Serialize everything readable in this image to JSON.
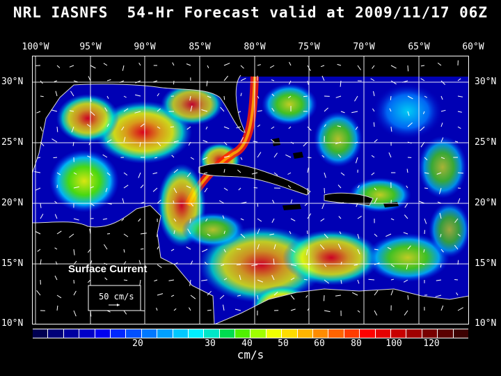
{
  "title": "NRL IASNFS  54-Hr Forecast valid at 2009/11/17 06Z",
  "longitude_labels": [
    "100°W",
    "95°W",
    "90°W",
    "85°W",
    "80°W",
    "75°W",
    "70°W",
    "65°W",
    "60°W"
  ],
  "latitude_labels": [
    "30°N",
    "25°N",
    "20°N",
    "15°N",
    "10°N"
  ],
  "map": {
    "field_label": "Surface Current",
    "scale_label": "50 cm/s",
    "lon_range": [
      -100,
      -60
    ],
    "lat_range": [
      10,
      31
    ],
    "grid": true
  },
  "colorbar": {
    "unit": "cm/s",
    "tick_labels": [
      "20",
      "30",
      "40",
      "50",
      "60",
      "80",
      "100",
      "120"
    ],
    "colors": [
      "#000050",
      "#000078",
      "#0000a0",
      "#0000c8",
      "#0000f0",
      "#0028ff",
      "#0050ff",
      "#0078ff",
      "#00a0ff",
      "#00c8ff",
      "#00f0ff",
      "#00e6c8",
      "#00dc50",
      "#50f000",
      "#a0ff00",
      "#f0ff00",
      "#ffdc00",
      "#ffb400",
      "#ff8c00",
      "#ff6400",
      "#ff3c00",
      "#ff0000",
      "#e60000",
      "#c80000",
      "#a00000",
      "#780000",
      "#5a0000",
      "#3c0000"
    ]
  }
}
